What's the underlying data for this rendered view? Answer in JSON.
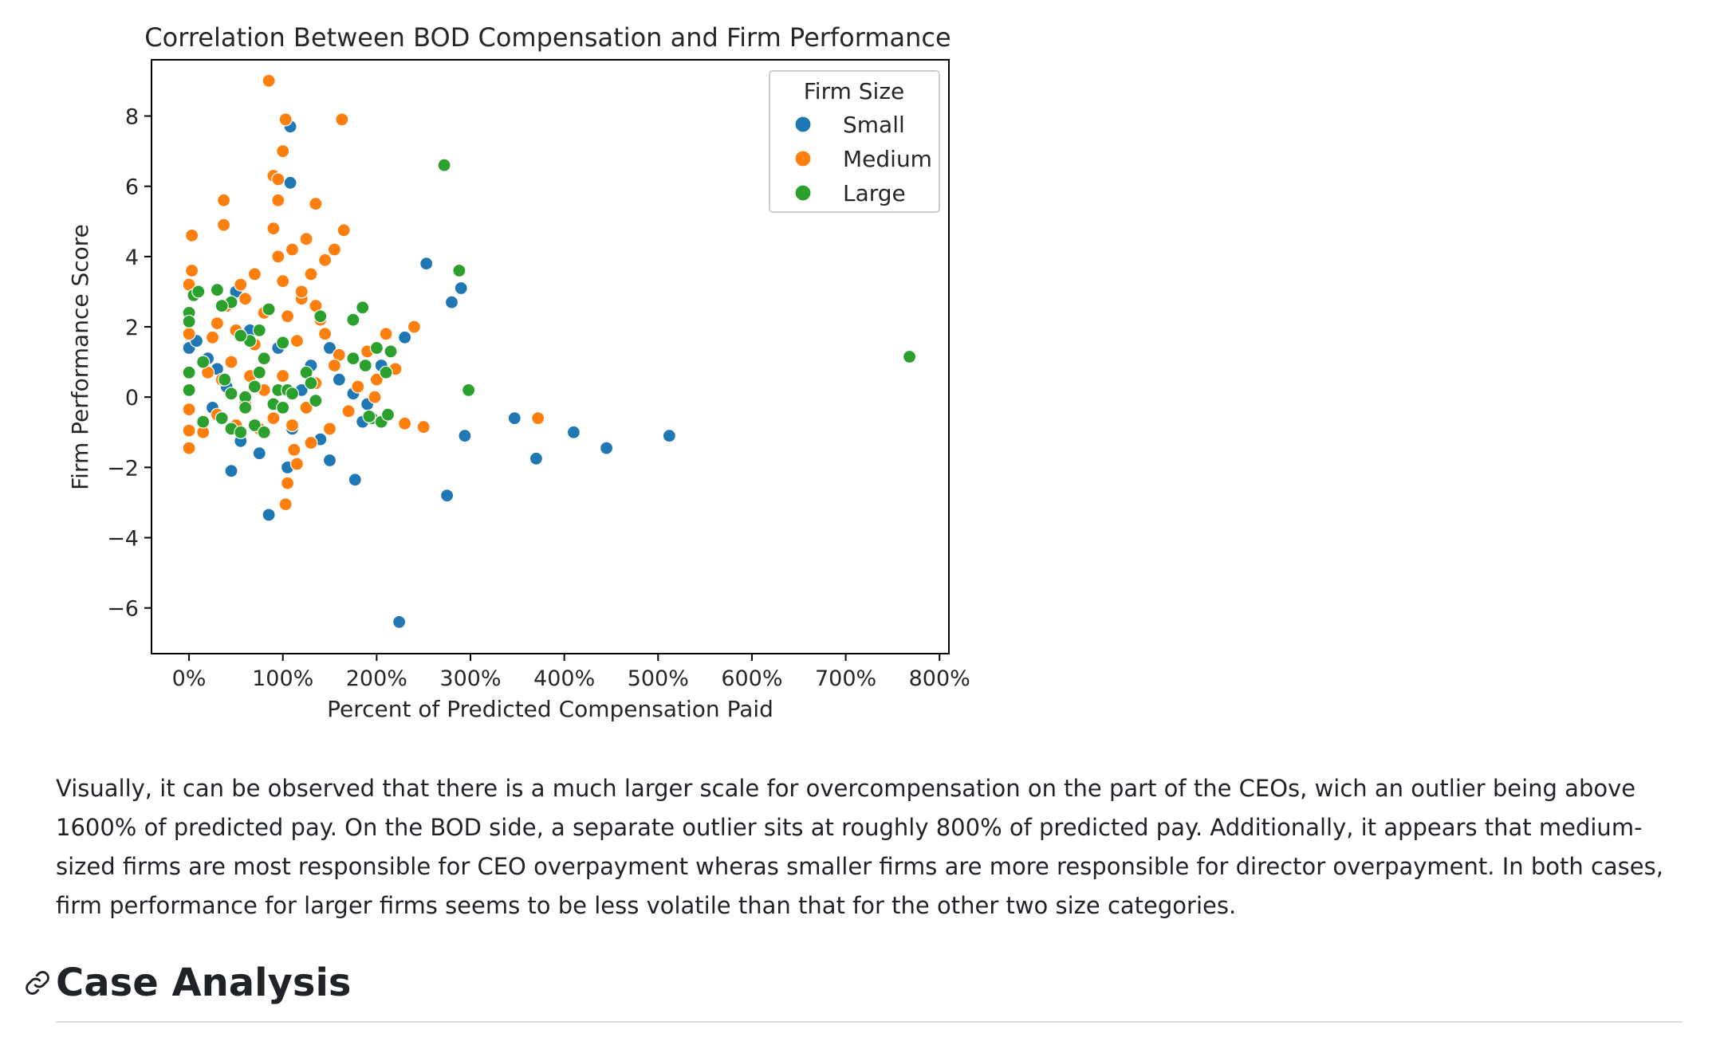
{
  "chart_data": {
    "type": "scatter",
    "title": "Correlation Between BOD Compensation and Firm Performance",
    "xlabel": "Percent of Predicted Compensation Paid",
    "ylabel": "Firm Performance Score",
    "xlim": [
      -0.4,
      8.1
    ],
    "ylim": [
      -7.3,
      9.6
    ],
    "x_ticks": [
      0,
      1,
      2,
      3,
      4,
      5,
      6,
      7,
      8
    ],
    "x_tick_labels": [
      "0%",
      "100%",
      "200%",
      "300%",
      "400%",
      "500%",
      "600%",
      "700%",
      "800%"
    ],
    "y_ticks": [
      -6,
      -4,
      -2,
      0,
      2,
      4,
      6,
      8
    ],
    "y_tick_labels": [
      "−6",
      "−4",
      "−2",
      "0",
      "2",
      "4",
      "6",
      "8"
    ],
    "grid": false,
    "legend": {
      "title": "Firm Size",
      "position": "upper-right"
    },
    "colors": {
      "Small": "#1f77b4",
      "Medium": "#ff7f0e",
      "Large": "#2ca02c"
    },
    "series": [
      {
        "name": "Small",
        "points": [
          [
            1.08,
            7.7
          ],
          [
            1.08,
            6.1
          ],
          [
            2.53,
            3.8
          ],
          [
            2.9,
            3.1
          ],
          [
            2.8,
            2.7
          ],
          [
            2.3,
            1.7
          ],
          [
            3.47,
            -0.6
          ],
          [
            4.1,
            -1.0
          ],
          [
            4.45,
            -1.45
          ],
          [
            5.12,
            -1.1
          ],
          [
            2.94,
            -1.1
          ],
          [
            3.7,
            -1.75
          ],
          [
            1.77,
            -2.35
          ],
          [
            2.75,
            -2.8
          ],
          [
            0.85,
            -3.35
          ],
          [
            2.24,
            -6.4
          ],
          [
            0.45,
            -2.1
          ],
          [
            1.05,
            -2.0
          ],
          [
            1.5,
            -1.8
          ],
          [
            0.75,
            -1.6
          ],
          [
            0.0,
            1.4
          ],
          [
            0.08,
            1.6
          ],
          [
            0.2,
            1.1
          ],
          [
            0.3,
            0.8
          ],
          [
            0.5,
            3.0
          ],
          [
            1.5,
            1.4
          ],
          [
            1.6,
            0.5
          ],
          [
            1.9,
            -0.2
          ],
          [
            2.05,
            0.9
          ],
          [
            1.4,
            -1.2
          ],
          [
            0.55,
            -1.25
          ],
          [
            1.2,
            0.2
          ],
          [
            0.65,
            1.9
          ],
          [
            0.95,
            1.4
          ],
          [
            1.3,
            0.9
          ],
          [
            1.75,
            0.1
          ],
          [
            1.85,
            -0.7
          ],
          [
            0.25,
            -0.3
          ],
          [
            0.4,
            0.3
          ],
          [
            1.1,
            -0.9
          ]
        ]
      },
      {
        "name": "Medium",
        "points": [
          [
            0.85,
            9.0
          ],
          [
            1.03,
            7.9
          ],
          [
            1.63,
            7.9
          ],
          [
            1.0,
            7.0
          ],
          [
            0.9,
            6.3
          ],
          [
            0.95,
            6.2
          ],
          [
            0.95,
            5.6
          ],
          [
            0.37,
            5.6
          ],
          [
            1.35,
            5.5
          ],
          [
            0.37,
            4.9
          ],
          [
            0.03,
            4.6
          ],
          [
            1.65,
            4.75
          ],
          [
            0.03,
            3.6
          ],
          [
            0.0,
            3.2
          ],
          [
            0.4,
            2.6
          ],
          [
            0.25,
            1.7
          ],
          [
            0.3,
            2.1
          ],
          [
            0.0,
            1.8
          ],
          [
            2.4,
            2.0
          ],
          [
            2.1,
            1.8
          ],
          [
            2.2,
            0.8
          ],
          [
            2.0,
            0.5
          ],
          [
            1.98,
            0.0
          ],
          [
            3.72,
            -0.6
          ],
          [
            2.5,
            -0.85
          ],
          [
            2.3,
            -0.75
          ],
          [
            0.0,
            -0.35
          ],
          [
            0.0,
            -0.95
          ],
          [
            0.0,
            -1.45
          ],
          [
            1.05,
            -2.45
          ],
          [
            1.03,
            -3.05
          ],
          [
            1.15,
            -1.9
          ],
          [
            0.95,
            4.0
          ],
          [
            1.25,
            4.5
          ],
          [
            1.45,
            3.9
          ],
          [
            1.55,
            4.2
          ],
          [
            0.7,
            3.5
          ],
          [
            0.6,
            2.8
          ],
          [
            0.5,
            1.9
          ],
          [
            0.45,
            1.0
          ],
          [
            0.35,
            0.5
          ],
          [
            0.3,
            -0.5
          ],
          [
            0.6,
            -0.2
          ],
          [
            0.8,
            0.2
          ],
          [
            0.9,
            -0.6
          ],
          [
            1.1,
            -0.8
          ],
          [
            1.3,
            -1.3
          ],
          [
            1.5,
            -0.9
          ],
          [
            1.7,
            -0.4
          ],
          [
            1.8,
            0.3
          ],
          [
            1.6,
            1.2
          ],
          [
            1.4,
            2.2
          ],
          [
            1.2,
            2.8
          ],
          [
            1.0,
            3.3
          ],
          [
            0.8,
            2.4
          ],
          [
            0.7,
            1.5
          ],
          [
            0.65,
            0.6
          ],
          [
            0.75,
            -0.9
          ],
          [
            1.25,
            -0.3
          ],
          [
            1.35,
            0.4
          ],
          [
            1.15,
            1.6
          ],
          [
            1.05,
            2.3
          ],
          [
            1.2,
            3.0
          ],
          [
            1.3,
            3.5
          ],
          [
            1.1,
            4.2
          ],
          [
            0.9,
            4.8
          ],
          [
            1.35,
            2.6
          ],
          [
            1.45,
            1.8
          ],
          [
            1.55,
            0.9
          ],
          [
            0.5,
            -0.8
          ],
          [
            0.2,
            0.7
          ],
          [
            0.15,
            -1.0
          ],
          [
            1.9,
            1.3
          ],
          [
            1.0,
            0.6
          ],
          [
            1.12,
            -1.5
          ],
          [
            0.55,
            3.2
          ]
        ]
      },
      {
        "name": "Large",
        "points": [
          [
            2.72,
            6.6
          ],
          [
            2.88,
            3.6
          ],
          [
            7.68,
            1.15
          ],
          [
            2.98,
            0.2
          ],
          [
            0.0,
            2.4
          ],
          [
            0.05,
            2.9
          ],
          [
            0.1,
            3.0
          ],
          [
            0.3,
            3.05
          ],
          [
            0.45,
            2.7
          ],
          [
            0.35,
            2.6
          ],
          [
            0.85,
            2.5
          ],
          [
            1.85,
            2.55
          ],
          [
            1.75,
            2.2
          ],
          [
            1.4,
            2.3
          ],
          [
            0.75,
            1.9
          ],
          [
            0.65,
            1.6
          ],
          [
            0.55,
            1.75
          ],
          [
            1.0,
            1.55
          ],
          [
            0.15,
            1.0
          ],
          [
            0.0,
            0.7
          ],
          [
            0.0,
            0.2
          ],
          [
            0.0,
            2.15
          ],
          [
            0.38,
            0.5
          ],
          [
            1.75,
            1.1
          ],
          [
            2.0,
            1.4
          ],
          [
            2.15,
            1.3
          ],
          [
            1.88,
            0.9
          ],
          [
            2.1,
            0.7
          ],
          [
            1.95,
            -0.6
          ],
          [
            1.92,
            -0.55
          ],
          [
            2.05,
            -0.7
          ],
          [
            2.12,
            -0.5
          ],
          [
            0.15,
            -0.7
          ],
          [
            0.35,
            -0.6
          ],
          [
            0.45,
            -0.9
          ],
          [
            0.55,
            -1.0
          ],
          [
            0.7,
            -0.8
          ],
          [
            0.8,
            -1.0
          ],
          [
            0.45,
            0.1
          ],
          [
            0.6,
            0.0
          ],
          [
            0.7,
            0.3
          ],
          [
            0.75,
            0.7
          ],
          [
            0.9,
            -0.2
          ],
          [
            0.95,
            0.2
          ],
          [
            1.05,
            0.2
          ],
          [
            1.25,
            0.7
          ],
          [
            1.3,
            0.4
          ],
          [
            1.0,
            -0.3
          ],
          [
            1.1,
            0.1
          ],
          [
            1.35,
            -0.1
          ],
          [
            0.8,
            1.1
          ],
          [
            0.6,
            -0.3
          ]
        ]
      }
    ]
  },
  "article": {
    "paragraph": "Visually, it can be observed that there is a much larger scale for overcompensation on the part of the CEOs, wich an outlier being above 1600% of predicted pay. On the BOD side, a separate outlier sits at roughly 800% of predicted pay. Additionally, it appears that medium-sized firms are most responsible for CEO overpayment wheras smaller firms are more responsible for director overpayment. In both cases, firm performance for larger firms seems to be less volatile than that for the other two size categories.",
    "heading": "Case Analysis",
    "anchor_icon": "link-icon"
  }
}
